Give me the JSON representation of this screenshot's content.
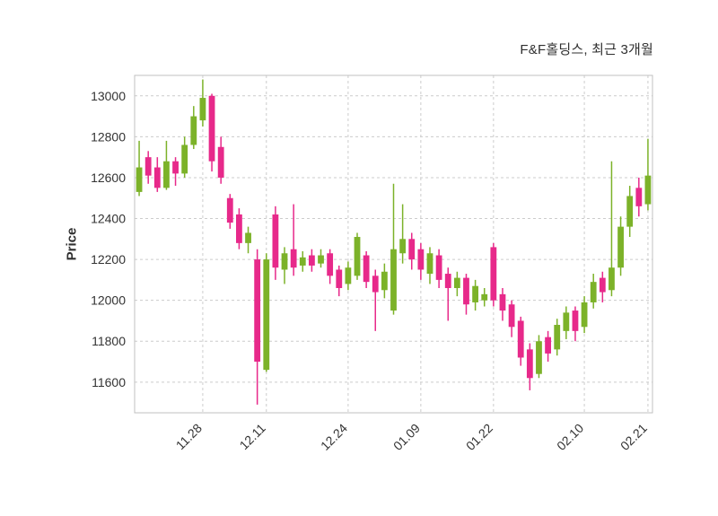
{
  "chart_data": {
    "type": "candlestick",
    "title": "F&F홀딩스, 최근 3개월",
    "ylabel": "Price",
    "ylim": [
      11450,
      13100
    ],
    "yticks": [
      11600,
      11800,
      12000,
      12200,
      12400,
      12600,
      12800,
      13000
    ],
    "xtick_labels": [
      "11.28",
      "12.11",
      "12.24",
      "01.09",
      "01.22",
      "02.10",
      "02.21"
    ],
    "xtick_indices": [
      7,
      14,
      23,
      31,
      39,
      49,
      56
    ],
    "grid": true,
    "legend": "none",
    "up_color": "#7cb229",
    "down_color": "#e7298a",
    "grid_color": "#cccccc",
    "border_color": "#c0c0c0",
    "text_color": "#333333",
    "candles_format": [
      "open",
      "high",
      "low",
      "close"
    ],
    "candles": [
      [
        12530,
        12780,
        12510,
        12650
      ],
      [
        12700,
        12730,
        12570,
        12610
      ],
      [
        12650,
        12700,
        12530,
        12550
      ],
      [
        12550,
        12780,
        12540,
        12680
      ],
      [
        12680,
        12700,
        12560,
        12620
      ],
      [
        12620,
        12800,
        12600,
        12760
      ],
      [
        12760,
        12950,
        12740,
        12900
      ],
      [
        12880,
        13080,
        12850,
        12990
      ],
      [
        13000,
        13010,
        12630,
        12680
      ],
      [
        12750,
        12800,
        12570,
        12600
      ],
      [
        12500,
        12520,
        12350,
        12380
      ],
      [
        12420,
        12450,
        12250,
        12280
      ],
      [
        12280,
        12360,
        12230,
        12330
      ],
      [
        12200,
        12250,
        11490,
        11700
      ],
      [
        11660,
        12230,
        11650,
        12200
      ],
      [
        12420,
        12460,
        12100,
        12160
      ],
      [
        12150,
        12260,
        12080,
        12230
      ],
      [
        12250,
        12470,
        12120,
        12160
      ],
      [
        12170,
        12240,
        12140,
        12210
      ],
      [
        12220,
        12250,
        12140,
        12170
      ],
      [
        12180,
        12250,
        12160,
        12220
      ],
      [
        12230,
        12250,
        12080,
        12120
      ],
      [
        12150,
        12170,
        12020,
        12060
      ],
      [
        12080,
        12190,
        12050,
        12160
      ],
      [
        12120,
        12330,
        12100,
        12310
      ],
      [
        12220,
        12240,
        12060,
        12090
      ],
      [
        12120,
        12150,
        11850,
        12040
      ],
      [
        12050,
        12180,
        12010,
        12140
      ],
      [
        11950,
        12570,
        11930,
        12250
      ],
      [
        12230,
        12470,
        12180,
        12300
      ],
      [
        12300,
        12330,
        12150,
        12200
      ],
      [
        12250,
        12280,
        12100,
        12150
      ],
      [
        12130,
        12260,
        12080,
        12230
      ],
      [
        12220,
        12250,
        12060,
        12100
      ],
      [
        12130,
        12160,
        11900,
        12060
      ],
      [
        12060,
        12140,
        12020,
        12110
      ],
      [
        12110,
        12130,
        11930,
        11980
      ],
      [
        11990,
        12100,
        11950,
        12070
      ],
      [
        12000,
        12060,
        11970,
        12030
      ],
      [
        12260,
        12280,
        11970,
        12000
      ],
      [
        12030,
        12060,
        11900,
        11950
      ],
      [
        11980,
        12000,
        11820,
        11870
      ],
      [
        11900,
        11920,
        11680,
        11720
      ],
      [
        11760,
        11790,
        11560,
        11620
      ],
      [
        11640,
        11830,
        11620,
        11800
      ],
      [
        11820,
        11850,
        11700,
        11740
      ],
      [
        11760,
        11910,
        11730,
        11880
      ],
      [
        11850,
        11970,
        11810,
        11940
      ],
      [
        11950,
        11970,
        11800,
        11850
      ],
      [
        11870,
        12020,
        11840,
        11990
      ],
      [
        11990,
        12130,
        11960,
        12090
      ],
      [
        12110,
        12140,
        11990,
        12040
      ],
      [
        12050,
        12680,
        12020,
        12160
      ],
      [
        12160,
        12410,
        12120,
        12360
      ],
      [
        12360,
        12560,
        12310,
        12510
      ],
      [
        12550,
        12600,
        12410,
        12460
      ],
      [
        12470,
        12790,
        12440,
        12610
      ]
    ]
  }
}
